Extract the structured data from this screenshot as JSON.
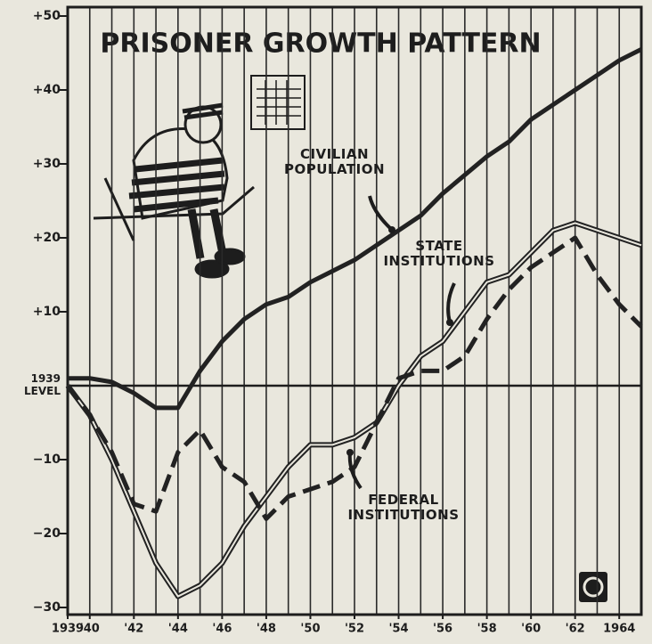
{
  "chart_data": {
    "type": "line",
    "title": "PRISONER GROWTH PATTERN",
    "x": [
      1939,
      1940,
      1941,
      1942,
      1943,
      1944,
      1945,
      1946,
      1947,
      1948,
      1949,
      1950,
      1951,
      1952,
      1953,
      1954,
      1955,
      1956,
      1957,
      1958,
      1959,
      1960,
      1961,
      1962,
      1963,
      1964,
      1965
    ],
    "series": [
      {
        "name": "CIVILIAN POPULATION",
        "color": "#222222",
        "line_style": "solid",
        "values": [
          1,
          1,
          0.5,
          -1,
          -3,
          -3,
          2,
          6,
          9,
          11,
          12,
          14,
          15.5,
          17,
          19,
          21,
          23,
          26,
          28.5,
          31,
          33,
          36,
          38,
          40,
          42,
          44,
          45.5
        ]
      },
      {
        "name": "STATE INSTITUTIONS",
        "color": "#222222",
        "line_style": "double",
        "values": [
          0,
          -4,
          -10,
          -17,
          -24,
          -28.5,
          -27,
          -24,
          -19,
          -15,
          -11,
          -8,
          -8,
          -7,
          -5,
          0,
          4,
          6,
          10,
          14,
          15,
          18,
          21,
          22,
          21,
          20,
          19
        ]
      },
      {
        "name": "FEDERAL INSTITUTIONS",
        "color": "#222222",
        "line_style": "dashed",
        "values": [
          0,
          -4,
          -9,
          -16,
          -17,
          -9,
          -6,
          -11,
          -13,
          -18,
          -15,
          -14,
          -13,
          -11,
          -5,
          1,
          2,
          2,
          4,
          9,
          13,
          16,
          18,
          20,
          15,
          11,
          8
        ]
      }
    ],
    "xlim": [
      1939,
      1965
    ],
    "xticks": [
      {
        "value": 1939,
        "label": "1939"
      },
      {
        "value": 1940,
        "label": "'40"
      },
      {
        "value": 1942,
        "label": "'42"
      },
      {
        "value": 1944,
        "label": "'44"
      },
      {
        "value": 1946,
        "label": "'46"
      },
      {
        "value": 1948,
        "label": "'48"
      },
      {
        "value": 1950,
        "label": "'50"
      },
      {
        "value": 1952,
        "label": "'52"
      },
      {
        "value": 1954,
        "label": "'54"
      },
      {
        "value": 1956,
        "label": "'56"
      },
      {
        "value": 1958,
        "label": "'58"
      },
      {
        "value": 1960,
        "label": "'60"
      },
      {
        "value": 1962,
        "label": "'62"
      },
      {
        "value": 1964,
        "label": "1964"
      }
    ],
    "ylim": [
      -30,
      50
    ],
    "yticks": [
      {
        "value": -30,
        "label": "−30"
      },
      {
        "value": -20,
        "label": "−20"
      },
      {
        "value": -10,
        "label": "−10"
      },
      {
        "value": 0,
        "label": "1939 LEVEL"
      },
      {
        "value": 10,
        "label": "+10"
      },
      {
        "value": 20,
        "label": "+20"
      },
      {
        "value": 30,
        "label": "+30"
      },
      {
        "value": 40,
        "label": "+40"
      },
      {
        "value": 50,
        "label": "+50"
      }
    ],
    "grid": true
  }
}
